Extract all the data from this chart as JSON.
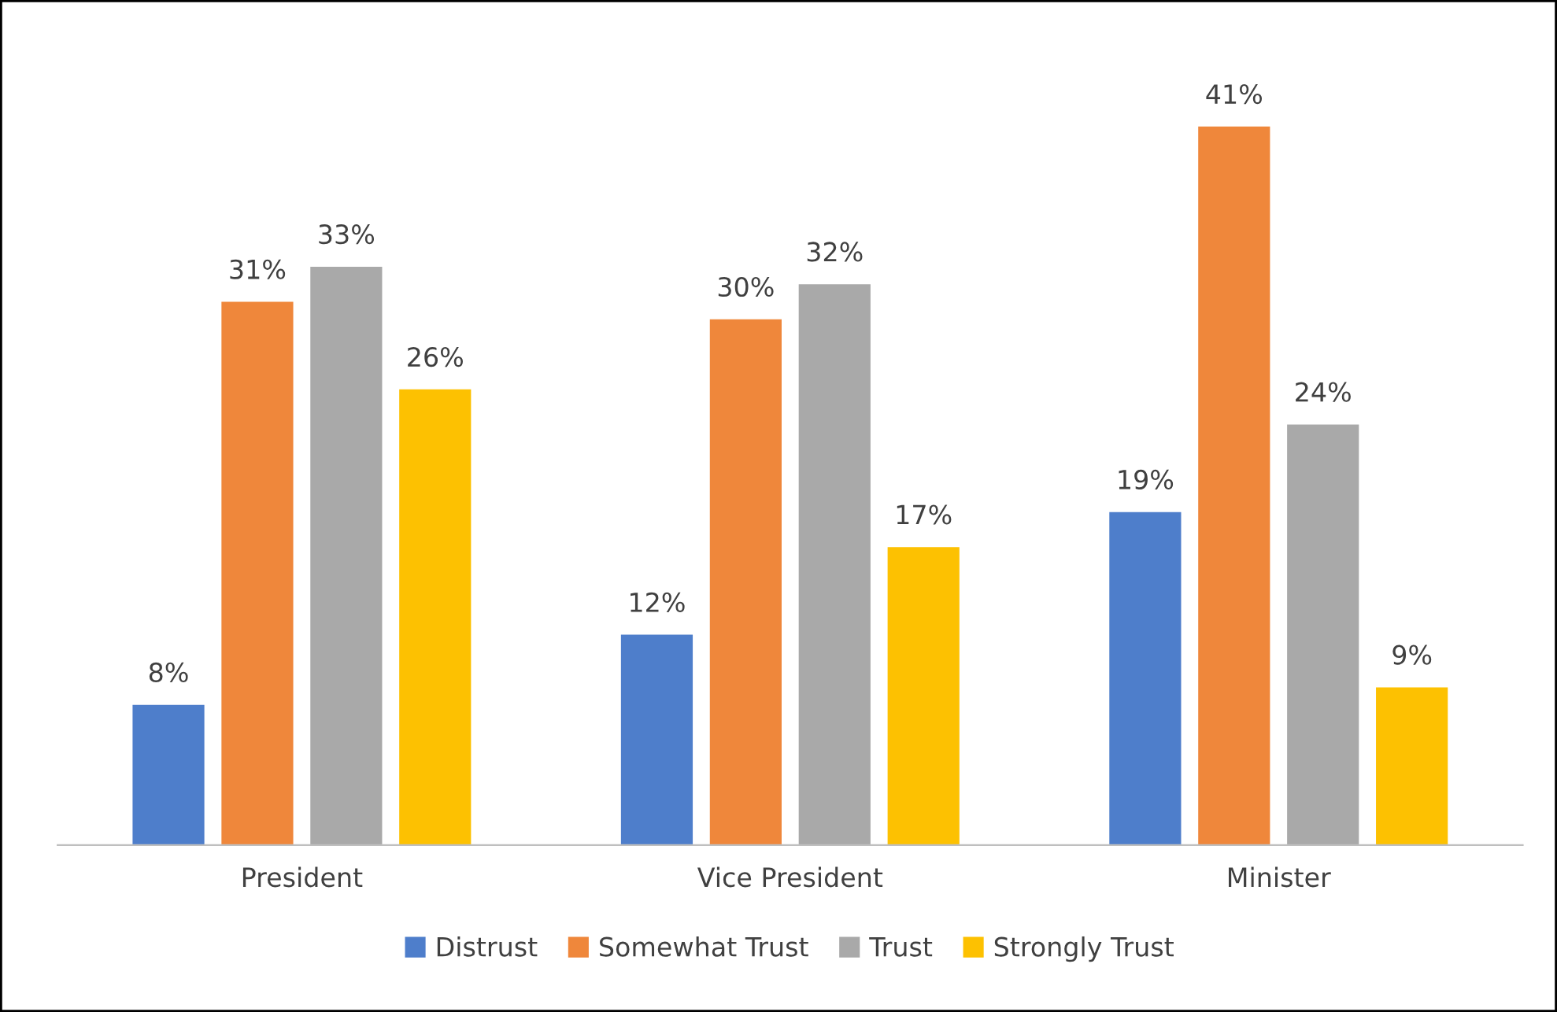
{
  "chart_data": {
    "type": "bar",
    "categories": [
      "President",
      "Vice President",
      "Minister"
    ],
    "series": [
      {
        "name": "Distrust",
        "color": "#4e7ecb",
        "values": [
          8,
          12,
          19
        ],
        "value_labels": [
          "8%",
          "12%",
          "19%"
        ]
      },
      {
        "name": "Somewhat Trust",
        "color": "#ef873b",
        "values": [
          31,
          30,
          41
        ],
        "value_labels": [
          "31%",
          "30%",
          "41%"
        ]
      },
      {
        "name": "Trust",
        "color": "#a9a9a9",
        "values": [
          33,
          32,
          24
        ],
        "value_labels": [
          "33%",
          "32%",
          "24%"
        ]
      },
      {
        "name": "Strongly Trust",
        "color": "#fdc101",
        "values": [
          26,
          17,
          9
        ],
        "value_labels": [
          "26%",
          "17%",
          "9%"
        ]
      }
    ],
    "legend": "bottom"
  }
}
